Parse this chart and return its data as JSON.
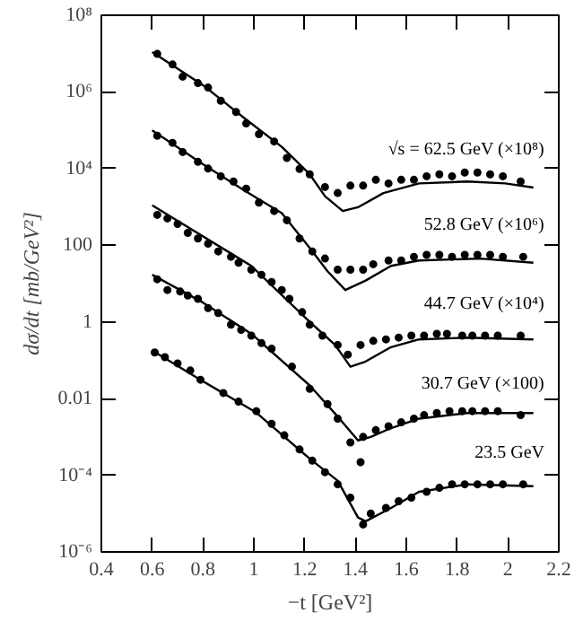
{
  "chart_data": {
    "type": "scatter",
    "xlabel": "−t [GeV²]",
    "ylabel": "dσ/dt [mb/GeV²]",
    "log": "y",
    "grid": false,
    "legend": false,
    "marker": "circle",
    "xlim": [
      0.4,
      2.2
    ],
    "xticks": [
      0.4,
      0.6,
      0.8,
      1,
      1.2,
      1.4,
      1.6,
      1.8,
      2,
      2.2
    ],
    "ylim": [
      1e-06,
      100000000.0
    ],
    "yticks": [
      {
        "value": 100000000.0,
        "label": "10⁸"
      },
      {
        "value": 1000000.0,
        "label": "10⁶"
      },
      {
        "value": 10000.0,
        "label": "10⁴"
      },
      100,
      1,
      0.01,
      {
        "value": 0.0001,
        "label": "10⁻⁴"
      },
      {
        "value": 1e-06,
        "label": "10⁻⁶"
      }
    ],
    "series": [
      {
        "name": "√s = 62.5 GeV (×10⁸)",
        "color": "#000000",
        "x": [
          0.62,
          0.68,
          0.72,
          0.78,
          0.82,
          0.87,
          0.93,
          0.97,
          1.02,
          1.08,
          1.13,
          1.18,
          1.22,
          1.28,
          1.33,
          1.38,
          1.43,
          1.48,
          1.53,
          1.58,
          1.63,
          1.68,
          1.73,
          1.78,
          1.83,
          1.88,
          1.93,
          1.98,
          2.05
        ],
        "values": [
          9800000.0,
          5200000.0,
          2500000.0,
          1700000.0,
          1300000.0,
          590000.0,
          300000.0,
          150000.0,
          79000.0,
          51000.0,
          19000.0,
          9800.0,
          7100.0,
          3300.0,
          2300.0,
          3600.0,
          3600.0,
          5100.0,
          4100.0,
          5100.0,
          5100.0,
          6300.0,
          7100.0,
          6300.0,
          7900.0,
          7900.0,
          7100.0,
          6300.0,
          4600.0
        ]
      },
      {
        "type": "line",
        "marker": "none",
        "color": "#000000",
        "x": [
          0.6,
          0.8,
          0.97,
          1.11,
          1.22,
          1.28,
          1.35,
          1.41,
          1.51,
          1.65,
          1.84,
          1.99,
          2.1
        ],
        "values": [
          11000000.0,
          1500000.0,
          190000.0,
          37000.0,
          7100.0,
          1900.0,
          780.0,
          980.0,
          2300.0,
          4100.0,
          4600.0,
          4100.0,
          3200.0
        ]
      },
      {
        "name": "52.8 GeV (×10⁶)",
        "color": "#000000",
        "x": [
          0.62,
          0.68,
          0.72,
          0.78,
          0.82,
          0.87,
          0.92,
          0.97,
          1.02,
          1.08,
          1.13,
          1.18,
          1.23,
          1.28,
          1.33,
          1.38,
          1.43,
          1.47,
          1.53,
          1.58,
          1.63,
          1.68,
          1.73,
          1.78,
          1.83,
          1.88,
          1.93,
          1.98,
          2.06
        ],
        "values": [
          72000.0,
          47000.0,
          27000.0,
          15000.0,
          10000.0,
          6300.0,
          4600.0,
          3000.0,
          1300.0,
          780.0,
          450.0,
          150.0,
          69,
          45,
          23,
          23,
          23,
          32,
          40,
          40,
          50,
          56,
          56,
          50,
          56,
          56,
          56,
          50,
          50
        ]
      },
      {
        "type": "line",
        "marker": "none",
        "color": "#000000",
        "x": [
          0.6,
          0.8,
          0.97,
          1.11,
          1.22,
          1.29,
          1.36,
          1.44,
          1.54,
          1.65,
          1.89,
          2.1
        ],
        "values": [
          100000.0,
          13000.0,
          2500.0,
          690.0,
          85,
          21,
          6.8,
          12,
          29,
          40,
          45,
          35
        ]
      },
      {
        "name": "44.7 GeV (×10⁴)",
        "color": "#000000",
        "x": [
          0.62,
          0.66,
          0.7,
          0.74,
          0.78,
          0.82,
          0.86,
          0.91,
          0.94,
          0.99,
          1.03,
          1.07,
          1.11,
          1.14,
          1.19,
          1.22,
          1.27,
          1.33,
          1.37,
          1.42,
          1.47,
          1.52,
          1.57,
          1.62,
          1.67,
          1.72,
          1.76,
          1.82,
          1.86,
          1.91,
          1.96,
          2.05
        ],
        "values": [
          620,
          500,
          360,
          210,
          150,
          110,
          69,
          50,
          35,
          23,
          17,
          11,
          6.8,
          4.0,
          1.8,
          0.85,
          0.44,
          0.25,
          0.14,
          0.25,
          0.32,
          0.35,
          0.39,
          0.44,
          0.44,
          0.49,
          0.49,
          0.44,
          0.44,
          0.44,
          0.44,
          0.44
        ]
      },
      {
        "type": "line",
        "marker": "none",
        "color": "#000000",
        "x": [
          0.6,
          0.99,
          1.22,
          1.32,
          1.38,
          1.44,
          1.54,
          1.65,
          1.84,
          2.1
        ],
        "values": [
          1100.0,
          29,
          1.0,
          0.25,
          0.068,
          0.093,
          0.22,
          0.35,
          0.39,
          0.35
        ]
      },
      {
        "name": "30.7 GeV (×100)",
        "color": "#000000",
        "x": [
          0.62,
          0.66,
          0.71,
          0.74,
          0.78,
          0.82,
          0.86,
          0.91,
          0.95,
          0.99,
          1.03,
          1.07,
          1.15,
          1.22,
          1.29,
          1.33,
          1.38,
          1.42,
          1.43,
          1.48,
          1.53,
          1.58,
          1.63,
          1.67,
          1.72,
          1.77,
          1.82,
          1.86,
          1.91,
          1.96,
          2.05
        ],
        "values": [
          13,
          6.8,
          6.2,
          4.9,
          4.0,
          2.3,
          1.7,
          0.85,
          0.62,
          0.44,
          0.28,
          0.2,
          0.068,
          0.018,
          0.0072,
          0.003,
          0.00072,
          0.00022,
          0.001,
          0.0015,
          0.0019,
          0.0024,
          0.003,
          0.0037,
          0.0042,
          0.0047,
          0.0047,
          0.0047,
          0.0047,
          0.0047,
          0.0037
        ]
      },
      {
        "type": "line",
        "marker": "none",
        "color": "#000000",
        "x": [
          0.6,
          0.8,
          0.99,
          1.22,
          1.33,
          1.41,
          1.46,
          1.54,
          1.65,
          1.84,
          2.1
        ],
        "values": [
          17,
          3.2,
          0.49,
          0.022,
          0.0034,
          0.00081,
          0.001,
          0.0017,
          0.003,
          0.0042,
          0.0042
        ]
      },
      {
        "name": "23.5 GeV",
        "color": "#000000",
        "x": [
          0.61,
          0.65,
          0.7,
          0.75,
          0.79,
          0.88,
          0.94,
          1.01,
          1.07,
          1.12,
          1.18,
          1.23,
          1.28,
          1.33,
          1.38,
          1.43,
          1.46,
          1.52,
          1.57,
          1.62,
          1.68,
          1.73,
          1.78,
          1.83,
          1.88,
          1.93,
          1.98,
          2.06
        ],
        "values": [
          0.16,
          0.12,
          0.083,
          0.054,
          0.031,
          0.014,
          0.0083,
          0.0047,
          0.0022,
          0.0011,
          0.00047,
          0.00024,
          0.00012,
          5.8e-05,
          2.6e-05,
          5.2e-06,
          1e-05,
          1.4e-05,
          2.1e-05,
          2.6e-05,
          3.7e-05,
          4.7e-05,
          5.8e-05,
          5.8e-05,
          5.8e-05,
          5.8e-05,
          5.8e-05,
          5.8e-05
        ]
      },
      {
        "type": "line",
        "marker": "none",
        "color": "#000000",
        "x": [
          0.6,
          0.79,
          1.01,
          1.22,
          1.33,
          1.41,
          1.44,
          1.54,
          1.65,
          1.84,
          2.1
        ],
        "values": [
          0.18,
          0.031,
          0.0043,
          0.00027,
          7.2e-05,
          7.9e-06,
          6.3e-06,
          1.4e-05,
          3.7e-05,
          5.8e-05,
          5.2e-05
        ]
      }
    ]
  }
}
